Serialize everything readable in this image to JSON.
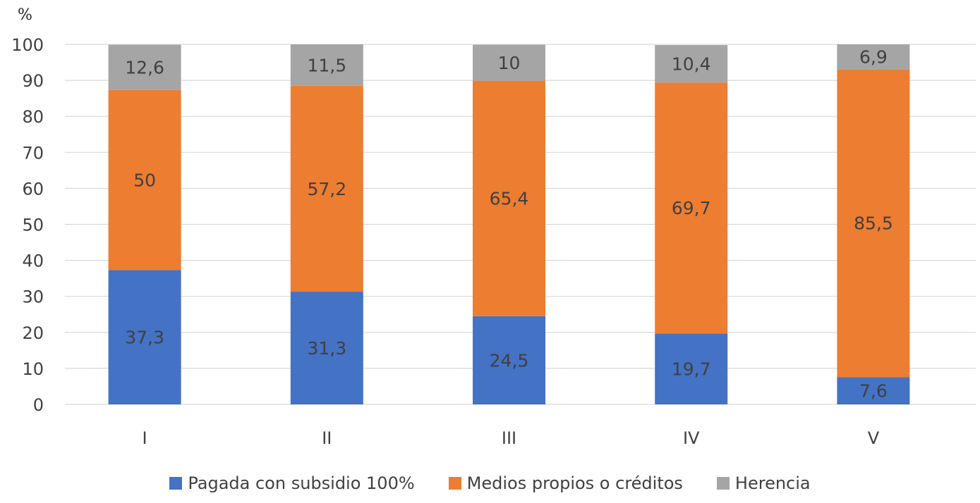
{
  "chart_data": {
    "type": "bar",
    "stacked": true,
    "unit_label": "%",
    "categories": [
      "I",
      "II",
      "III",
      "IV",
      "V"
    ],
    "ylim": [
      0,
      100
    ],
    "yticks": [
      0,
      10,
      20,
      30,
      40,
      50,
      60,
      70,
      80,
      90,
      100
    ],
    "grid": true,
    "legend_position": "bottom",
    "series": [
      {
        "name": "Pagada con subsidio 100%",
        "color": "#4472C4",
        "values": [
          37.3,
          31.3,
          24.5,
          19.7,
          7.6
        ],
        "labels": [
          "37,3",
          "31,3",
          "24,5",
          "19,7",
          "7,6"
        ]
      },
      {
        "name": "Medios propios o créditos",
        "color": "#ED7D31",
        "values": [
          50,
          57.2,
          65.4,
          69.7,
          85.5
        ],
        "labels": [
          "50",
          "57,2",
          "65,4",
          "69,7",
          "85,5"
        ]
      },
      {
        "name": "Herencia",
        "color": "#A5A5A5",
        "values": [
          12.6,
          11.5,
          10,
          10.4,
          6.9
        ],
        "labels": [
          "12,6",
          "11,5",
          "10",
          "10,4",
          "6,9"
        ]
      }
    ]
  }
}
